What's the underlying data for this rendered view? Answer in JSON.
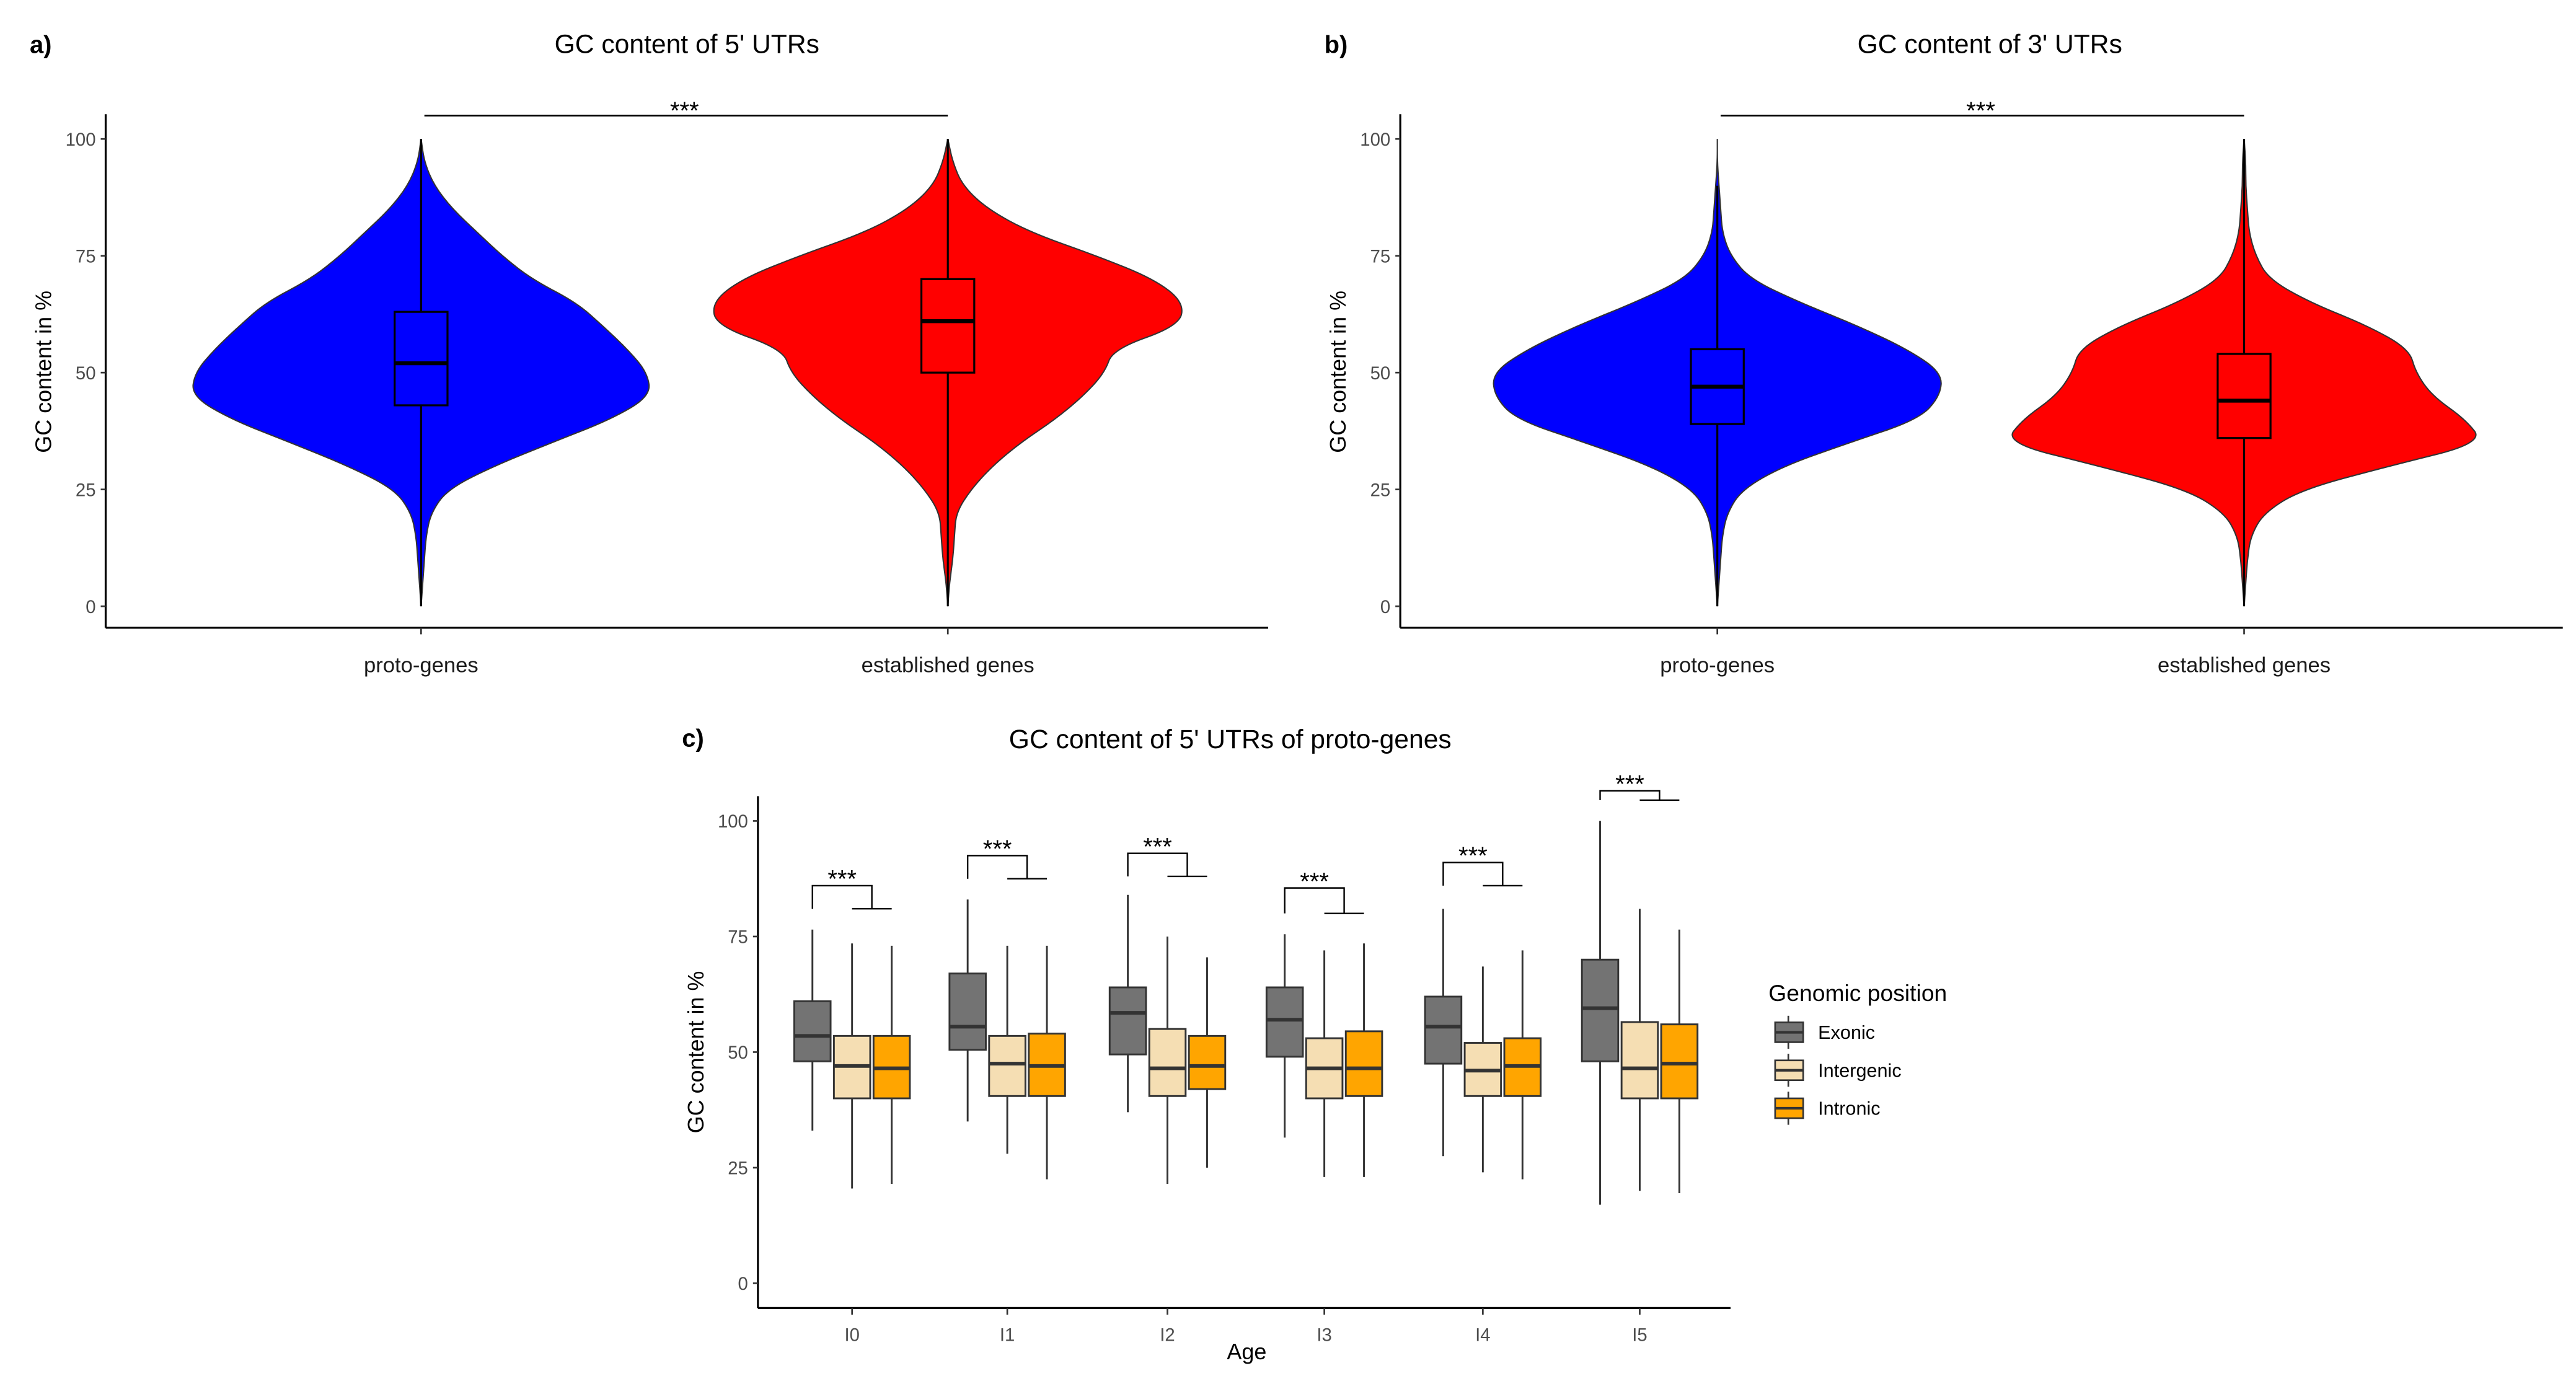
{
  "chart_data": [
    {
      "type": "violin",
      "panel_label": "a)",
      "title": "GC content of 5' UTRs",
      "xlabel": "",
      "ylabel": "GC content in %",
      "ylim": [
        0,
        100
      ],
      "yticks": [
        0,
        25,
        50,
        75,
        100
      ],
      "categories": [
        "proto-genes",
        "established genes"
      ],
      "colors": [
        "#0000FF",
        "#FF0000"
      ],
      "density_y": [
        0,
        5,
        10,
        15,
        20,
        25,
        30,
        35,
        40,
        45,
        50,
        55,
        60,
        65,
        70,
        75,
        80,
        85,
        90,
        95,
        100
      ],
      "series": [
        {
          "name": "proto-genes",
          "density": [
            0,
            1,
            2,
            3,
            6,
            16,
            44,
            79,
            115,
            139,
            137,
            125,
            110,
            94,
            67,
            49,
            34,
            19,
            8,
            2,
            0
          ],
          "box": {
            "min": 0,
            "q1": 43,
            "median": 52,
            "q3": 63,
            "max": 100
          }
        },
        {
          "name": "established genes",
          "density": [
            0,
            1,
            3,
            4,
            5,
            14,
            27,
            44,
            65,
            82,
            95,
            100,
            140,
            143,
            125,
            90,
            50,
            24,
            9,
            3,
            0
          ],
          "box": {
            "min": 0,
            "q1": 50,
            "median": 61,
            "q3": 70,
            "max": 100
          }
        }
      ],
      "significance": {
        "label": "***",
        "between": [
          "proto-genes",
          "established genes"
        ],
        "y": 105
      }
    },
    {
      "type": "violin",
      "panel_label": "b)",
      "title": "GC content of 3' UTRs",
      "xlabel": "",
      "ylabel": "GC content in %",
      "ylim": [
        0,
        100
      ],
      "yticks": [
        0,
        25,
        50,
        75,
        100
      ],
      "categories": [
        "proto-genes",
        "established genes"
      ],
      "colors": [
        "#0000FF",
        "#FF0000"
      ],
      "density_y": [
        0,
        5,
        10,
        15,
        20,
        25,
        30,
        35,
        40,
        45,
        50,
        55,
        60,
        65,
        70,
        75,
        80,
        85,
        90,
        95,
        100
      ],
      "series": [
        {
          "name": "proto-genes",
          "density": [
            0,
            1,
            2,
            3,
            6,
            15,
            40,
            80,
            122,
            135,
            136,
            115,
            85,
            50,
            20,
            8,
            3,
            2,
            1,
            0,
            0
          ],
          "box": {
            "min": 0,
            "q1": 39,
            "median": 47,
            "q3": 55,
            "max": 90
          }
        },
        {
          "name": "established genes",
          "density": [
            0,
            1,
            2,
            4,
            12,
            35,
            88,
            145,
            134,
            114,
            104,
            100,
            75,
            40,
            15,
            7,
            3,
            2,
            1,
            1,
            0
          ],
          "box": {
            "min": 0,
            "q1": 36,
            "median": 44,
            "q3": 54,
            "max": 100
          }
        }
      ],
      "significance": {
        "label": "***",
        "between": [
          "proto-genes",
          "established genes"
        ],
        "y": 105
      }
    },
    {
      "type": "box",
      "panel_label": "c)",
      "title": "GC content of 5' UTRs of proto-genes",
      "xlabel": "Age",
      "ylabel": "GC content in %",
      "ylim": [
        0,
        100
      ],
      "yticks": [
        0,
        25,
        50,
        75,
        100
      ],
      "categories": [
        "I0",
        "I1",
        "I2",
        "I3",
        "I4",
        "I5"
      ],
      "legend": {
        "title": "Genomic position",
        "position": "right",
        "entries": [
          {
            "name": "Exonic",
            "color": "#737373"
          },
          {
            "name": "Intergenic",
            "color": "#F5DEB3"
          },
          {
            "name": "Intronic",
            "color": "#FFA500"
          }
        ]
      },
      "series": [
        {
          "name": "Exonic",
          "boxes": [
            {
              "min": 33,
              "q1": 48,
              "median": 53.5,
              "q3": 61,
              "max": 76.5
            },
            {
              "min": 35,
              "q1": 50.5,
              "median": 55.5,
              "q3": 67,
              "max": 83
            },
            {
              "min": 37,
              "q1": 49.5,
              "median": 58.5,
              "q3": 64,
              "max": 84
            },
            {
              "min": 31.5,
              "q1": 49,
              "median": 57,
              "q3": 64,
              "max": 75.5
            },
            {
              "min": 27.5,
              "q1": 47.5,
              "median": 55.5,
              "q3": 62,
              "max": 81
            },
            {
              "min": 17,
              "q1": 48,
              "median": 59.5,
              "q3": 70,
              "max": 100
            }
          ]
        },
        {
          "name": "Intergenic",
          "boxes": [
            {
              "min": 20.5,
              "q1": 40,
              "median": 47,
              "q3": 53.5,
              "max": 73.5
            },
            {
              "min": 28,
              "q1": 40.5,
              "median": 47.5,
              "q3": 53.5,
              "max": 73
            },
            {
              "min": 21.5,
              "q1": 40.5,
              "median": 46.5,
              "q3": 55,
              "max": 75
            },
            {
              "min": 23,
              "q1": 40,
              "median": 46.5,
              "q3": 53,
              "max": 72
            },
            {
              "min": 24,
              "q1": 40.5,
              "median": 46,
              "q3": 52,
              "max": 68.5
            },
            {
              "min": 20,
              "q1": 40,
              "median": 46.5,
              "q3": 56.5,
              "max": 81
            }
          ]
        },
        {
          "name": "Intronic",
          "boxes": [
            {
              "min": 21.5,
              "q1": 40,
              "median": 46.5,
              "q3": 53.5,
              "max": 73
            },
            {
              "min": 22.5,
              "q1": 40.5,
              "median": 47,
              "q3": 54,
              "max": 73
            },
            {
              "min": 25,
              "q1": 42,
              "median": 47,
              "q3": 53.5,
              "max": 70.5
            },
            {
              "min": 23,
              "q1": 40.5,
              "median": 46.5,
              "q3": 54.5,
              "max": 73.5
            },
            {
              "min": 22.5,
              "q1": 40.5,
              "median": 47,
              "q3": 53,
              "max": 72
            },
            {
              "min": 19.5,
              "q1": 40,
              "median": 47.5,
              "q3": 56,
              "max": 76.5
            }
          ]
        }
      ],
      "significance": [
        {
          "label": "***",
          "top": 86,
          "bottom": 81
        },
        {
          "label": "***",
          "top": 92.5,
          "bottom": 87.5
        },
        {
          "label": "***",
          "top": 93,
          "bottom": 88
        },
        {
          "label": "***",
          "top": 85.5,
          "bottom": 80
        },
        {
          "label": "***",
          "top": 91,
          "bottom": 86
        },
        {
          "label": "***",
          "top": 106.5,
          "bottom": 104.5
        }
      ]
    }
  ]
}
